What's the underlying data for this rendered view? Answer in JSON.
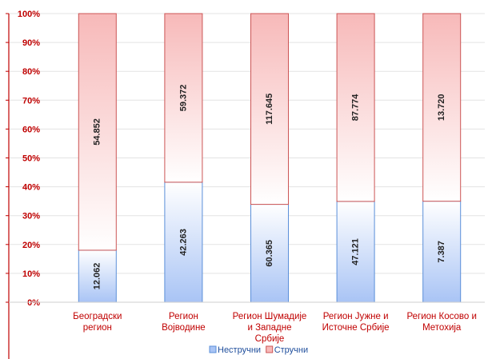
{
  "chart_data": {
    "type": "bar",
    "stacked": "percent",
    "categories": [
      [
        "Београдски",
        "регион"
      ],
      [
        "Регион",
        "Војводине"
      ],
      [
        "Регион Шумадије",
        "и Западне",
        "Србије"
      ],
      [
        "Регион Јужне и",
        "Источне Србије"
      ],
      [
        "Регион Косово и",
        "Метохија"
      ]
    ],
    "series": [
      {
        "name": "Нестручни",
        "values": [
          12062,
          42263,
          60365,
          47121,
          7387
        ],
        "labels": [
          "12.062",
          "42.263",
          "60.365",
          "47.121",
          "7.387"
        ],
        "color": "#a9c4f5",
        "edge": "#5b8fd9"
      },
      {
        "name": "Стручни",
        "values": [
          54852,
          59372,
          117645,
          87774,
          13720
        ],
        "labels": [
          "54.852",
          "59.372",
          "117.645",
          "87.774",
          "13.720"
        ],
        "color": "#f7b9b9",
        "edge": "#cc5555"
      }
    ],
    "yticks": [
      "0%",
      "10%",
      "20%",
      "30%",
      "40%",
      "50%",
      "60%",
      "70%",
      "80%",
      "90%",
      "100%"
    ],
    "ylim": [
      0,
      100
    ],
    "grid": true,
    "legend": "bottom",
    "axis_color": "#c00000"
  }
}
